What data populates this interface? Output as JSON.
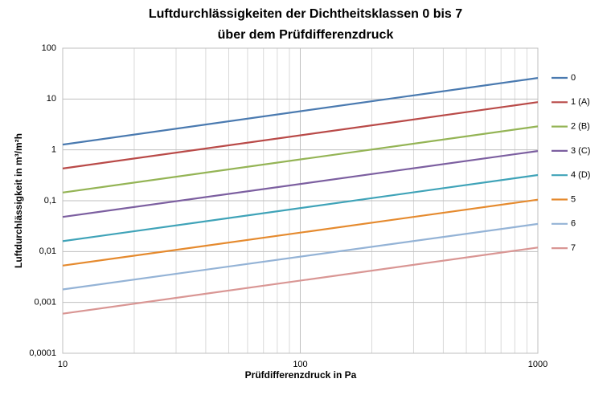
{
  "chart_data": {
    "type": "line",
    "title": [
      "Luftdurchlässigkeiten der Dichtheitsklassen 0 bis 7",
      "über dem Prüfdifferenzdruck"
    ],
    "x_label": "Prüfdifferenzdruck in Pa",
    "y_label": "Luftdurchlässigkeit in m³/m²h",
    "x": [
      10,
      1000
    ],
    "xlim": [
      10,
      1000
    ],
    "xticks": [
      10,
      100,
      1000
    ],
    "ylim": [
      0.0001,
      100
    ],
    "yticks": [
      {
        "value": 0.0001,
        "label": "0,0001"
      },
      {
        "value": 0.001,
        "label": "0,001"
      },
      {
        "value": 0.01,
        "label": "0,01"
      },
      {
        "value": 0.1,
        "label": "0,1"
      },
      1,
      10,
      100
    ],
    "log_x": true,
    "log_y": true,
    "grid": true,
    "legend": "right",
    "series": [
      {
        "name": "0",
        "color": "#4a7ab0",
        "values": [
          1.27,
          26
        ]
      },
      {
        "name": "1  (A)",
        "color": "#b94a48",
        "values": [
          0.43,
          8.7
        ]
      },
      {
        "name": "2 (B)",
        "color": "#94b455",
        "values": [
          0.145,
          2.9
        ]
      },
      {
        "name": "3 (C)",
        "color": "#7c5fa0",
        "values": [
          0.048,
          0.95
        ]
      },
      {
        "name": "4 (D)",
        "color": "#3fa3b8",
        "values": [
          0.016,
          0.32
        ]
      },
      {
        "name": "5",
        "color": "#e58a2e",
        "values": [
          0.0053,
          0.105
        ]
      },
      {
        "name": "6",
        "color": "#94b3d6",
        "values": [
          0.0018,
          0.035
        ]
      },
      {
        "name": "7",
        "color": "#d99694",
        "values": [
          0.0006,
          0.012
        ]
      }
    ]
  }
}
